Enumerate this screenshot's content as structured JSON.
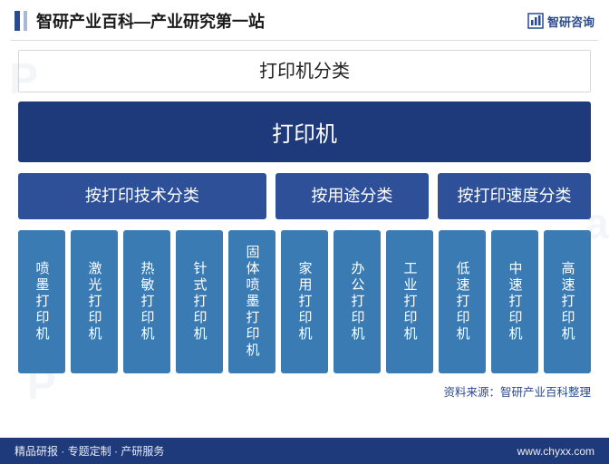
{
  "header": {
    "title": "智研产业百科—产业研究第一站",
    "brand": "智研咨询"
  },
  "diagram": {
    "type": "tree",
    "background_color": "#ffffff",
    "title": "打印机分类",
    "title_fontsize": 20,
    "title_color": "#222222",
    "root": {
      "label": "打印机",
      "bg_color": "#1f3a7a",
      "text_color": "#ffffff",
      "fontsize": 24
    },
    "categories": [
      {
        "label": "按打印技术分类",
        "flex": 5,
        "bg_color": "#2d5099",
        "text_color": "#ffffff",
        "fontsize": 18
      },
      {
        "label": "按用途分类",
        "flex": 3,
        "bg_color": "#2d5099",
        "text_color": "#ffffff",
        "fontsize": 18
      },
      {
        "label": "按打印速度分类",
        "flex": 3,
        "bg_color": "#2d5099",
        "text_color": "#ffffff",
        "fontsize": 18
      }
    ],
    "leaves": [
      {
        "label": "喷墨打印机",
        "bg_color": "#3b7bb3",
        "text_color": "#ffffff"
      },
      {
        "label": "激光打印机",
        "bg_color": "#3b7bb3",
        "text_color": "#ffffff"
      },
      {
        "label": "热敏打印机",
        "bg_color": "#3b7bb3",
        "text_color": "#ffffff"
      },
      {
        "label": "针式打印机",
        "bg_color": "#3b7bb3",
        "text_color": "#ffffff"
      },
      {
        "label": "固体喷墨打印机",
        "bg_color": "#3b7bb3",
        "text_color": "#ffffff"
      },
      {
        "label": "家用打印机",
        "bg_color": "#3b7bb3",
        "text_color": "#ffffff"
      },
      {
        "label": "办公打印机",
        "bg_color": "#3b7bb3",
        "text_color": "#ffffff"
      },
      {
        "label": "工业打印机",
        "bg_color": "#3b7bb3",
        "text_color": "#ffffff"
      },
      {
        "label": "低速打印机",
        "bg_color": "#3b7bb3",
        "text_color": "#ffffff"
      },
      {
        "label": "中速打印机",
        "bg_color": "#3b7bb3",
        "text_color": "#ffffff"
      },
      {
        "label": "高速打印机",
        "bg_color": "#3b7bb3",
        "text_color": "#ffffff"
      }
    ],
    "leaf_fontsize": 15,
    "leaf_height": 158,
    "gap_cat": 10,
    "gap_leaf": 6
  },
  "source": "资料来源：智研产业百科整理",
  "footer": {
    "left": "精品研报 · 专题定制 · 产研服务",
    "right": "www.chyxx.com"
  },
  "colors": {
    "accent": "#2a4a8f",
    "footer_bg": "#1f3a7a",
    "divider": "#dcdcdc"
  }
}
